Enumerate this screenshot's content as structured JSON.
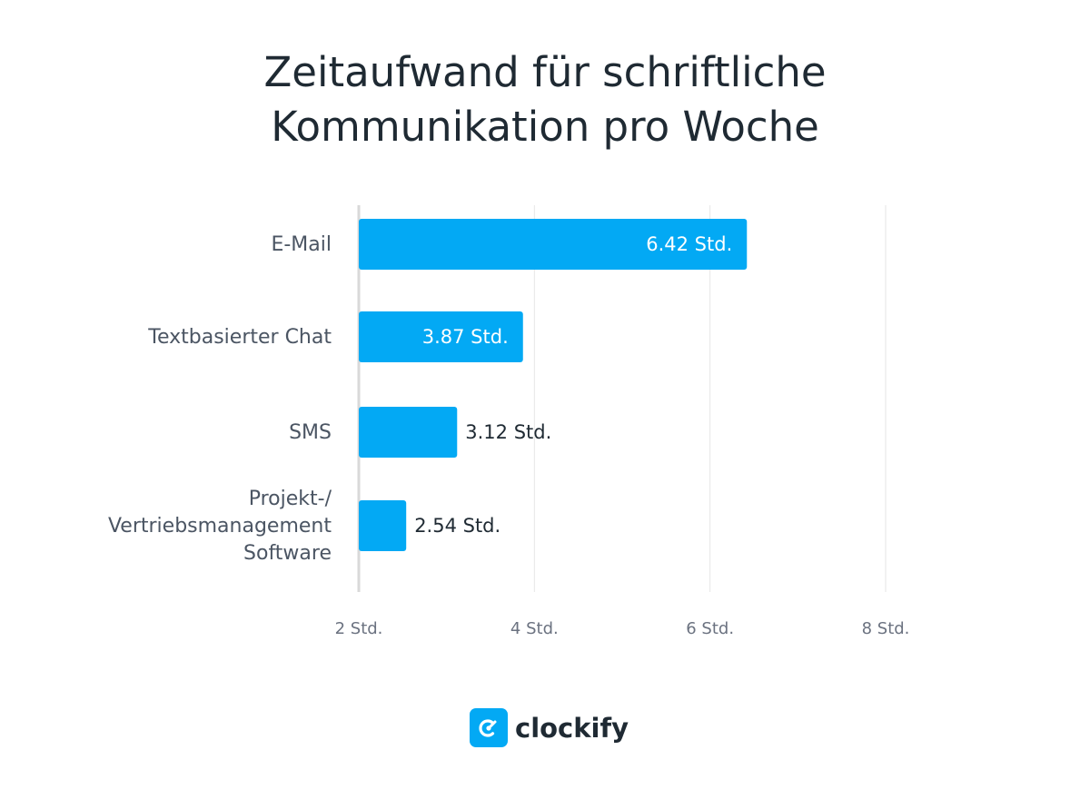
{
  "title": {
    "line1": "Zeitaufwand für schriftliche",
    "line2": "Kommunikation pro Woche"
  },
  "brand": {
    "name": "clockify",
    "color": "#03a9f4"
  },
  "chart_data": {
    "type": "bar",
    "orientation": "horizontal",
    "title": "Zeitaufwand für schriftliche Kommunikation pro Woche",
    "xlabel": "",
    "ylabel": "",
    "categories": [
      [
        "E-Mail"
      ],
      [
        "Textbasierter Chat"
      ],
      [
        "SMS"
      ],
      [
        "Projekt-/",
        "Vertriebsmanagement",
        "Software"
      ]
    ],
    "values": [
      6.42,
      3.87,
      3.12,
      2.54
    ],
    "value_labels": [
      "6.42 Std.",
      "3.87 Std.",
      "3.12 Std.",
      "2.54 Std."
    ],
    "xlim": [
      2,
      8
    ],
    "xticks": [
      2,
      4,
      6,
      8
    ],
    "xtick_labels": [
      "2 Std.",
      "4 Std.",
      "6 Std.",
      "8 Std."
    ],
    "grid": true,
    "bar_color": "#03a9f4",
    "grid_color": "#e6e6e6",
    "axis_color": "#d9d9d9"
  }
}
